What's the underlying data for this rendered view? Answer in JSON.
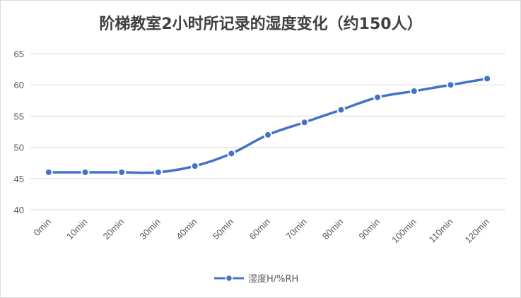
{
  "chart_data": {
    "type": "line",
    "title": "阶梯教室2小时所记录的湿度变化（约150人）",
    "xlabel": "",
    "ylabel": "",
    "categories": [
      "0min",
      "10min",
      "20min",
      "30min",
      "40min",
      "50min",
      "60min",
      "70min",
      "80min",
      "90min",
      "100min",
      "110min",
      "120min"
    ],
    "series": [
      {
        "name": "湿度H/%RH",
        "values": [
          46,
          46,
          46,
          46,
          47,
          49,
          52,
          54,
          56,
          58,
          59,
          60,
          61
        ]
      }
    ],
    "ylim": [
      40,
      65
    ],
    "yticks": [
      40,
      45,
      50,
      55,
      60,
      65
    ],
    "grid": true,
    "legend": "bottom",
    "colors": {
      "series": "#4472C4",
      "grid": "#d9d9d9",
      "text": "#595959"
    }
  }
}
